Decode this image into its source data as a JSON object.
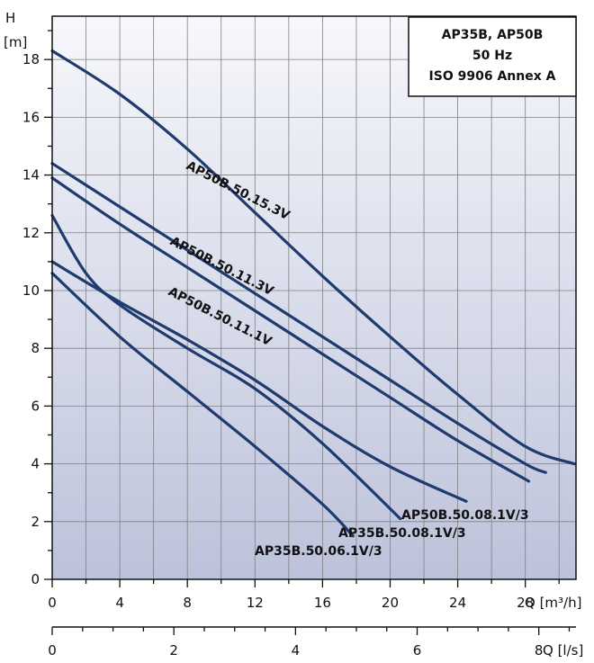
{
  "chart_data": {
    "type": "line",
    "title_box": [
      "AP35B, AP50B",
      "50 Hz",
      "ISO 9906 Annex A"
    ],
    "y_axis": {
      "label_top": "H",
      "label_unit": "[m]",
      "ticks": [
        0,
        2,
        4,
        6,
        8,
        10,
        12,
        14,
        16,
        18
      ],
      "range": [
        0,
        19.5
      ]
    },
    "x_axis": {
      "label": "Q [m³/h]",
      "ticks": [
        0,
        4,
        8,
        12,
        16,
        20,
        24,
        28
      ],
      "range": [
        0,
        31
      ]
    },
    "x_axis2": {
      "label": "Q [l/s]",
      "ticks": [
        0,
        2,
        4,
        6,
        8
      ]
    },
    "series": [
      {
        "name": "AP50B.50.15.3V",
        "points": [
          [
            0,
            18.3
          ],
          [
            4,
            16.8
          ],
          [
            8,
            14.9
          ],
          [
            12,
            12.7
          ],
          [
            16,
            10.5
          ],
          [
            20,
            8.4
          ],
          [
            24,
            6.4
          ],
          [
            28,
            4.6
          ],
          [
            30.9,
            4.0
          ]
        ]
      },
      {
        "name": "AP50B.50.11.3V",
        "points": [
          [
            0,
            14.4
          ],
          [
            4,
            12.9
          ],
          [
            8,
            11.4
          ],
          [
            12,
            9.9
          ],
          [
            16,
            8.4
          ],
          [
            20,
            6.9
          ],
          [
            24,
            5.4
          ],
          [
            28,
            4.0
          ],
          [
            29.2,
            3.7
          ]
        ]
      },
      {
        "name": "AP50B.50.11.1V",
        "points": [
          [
            0,
            13.9
          ],
          [
            4,
            12.3
          ],
          [
            8,
            10.8
          ],
          [
            12,
            9.3
          ],
          [
            16,
            7.8
          ],
          [
            20,
            6.3
          ],
          [
            24,
            4.8
          ],
          [
            28.2,
            3.4
          ]
        ]
      },
      {
        "name": "AP50B.50.08.1V/3",
        "points": [
          [
            0,
            11.0
          ],
          [
            4,
            9.6
          ],
          [
            8,
            8.3
          ],
          [
            12,
            6.9
          ],
          [
            16,
            5.3
          ],
          [
            20,
            3.9
          ],
          [
            24.5,
            2.7
          ]
        ]
      },
      {
        "name": "AP35B.50.08.1V/3",
        "points": [
          [
            0,
            12.6
          ],
          [
            2,
            10.6
          ],
          [
            4,
            9.5
          ],
          [
            8,
            8.0
          ],
          [
            12,
            6.6
          ],
          [
            16,
            4.7
          ],
          [
            20.6,
            2.1
          ]
        ]
      },
      {
        "name": "AP35B.50.06.1V/3",
        "points": [
          [
            0,
            10.6
          ],
          [
            4,
            8.4
          ],
          [
            8,
            6.5
          ],
          [
            12,
            4.6
          ],
          [
            16,
            2.6
          ],
          [
            17.8,
            1.5
          ]
        ]
      }
    ],
    "curve_labels": [
      "AP50B.50.15.3V",
      "AP50B.50.11.3V",
      "AP50B.50.11.1V",
      "AP50B.50.08.1V/3",
      "AP35B.50.08.1V/3",
      "AP35B.50.06.1V/3"
    ],
    "grid": true,
    "colors": {
      "curve": "#1f3a6e",
      "grid": "#808080",
      "bg_top": "#f7f8fc",
      "bg_bottom": "#bcc2da"
    }
  }
}
